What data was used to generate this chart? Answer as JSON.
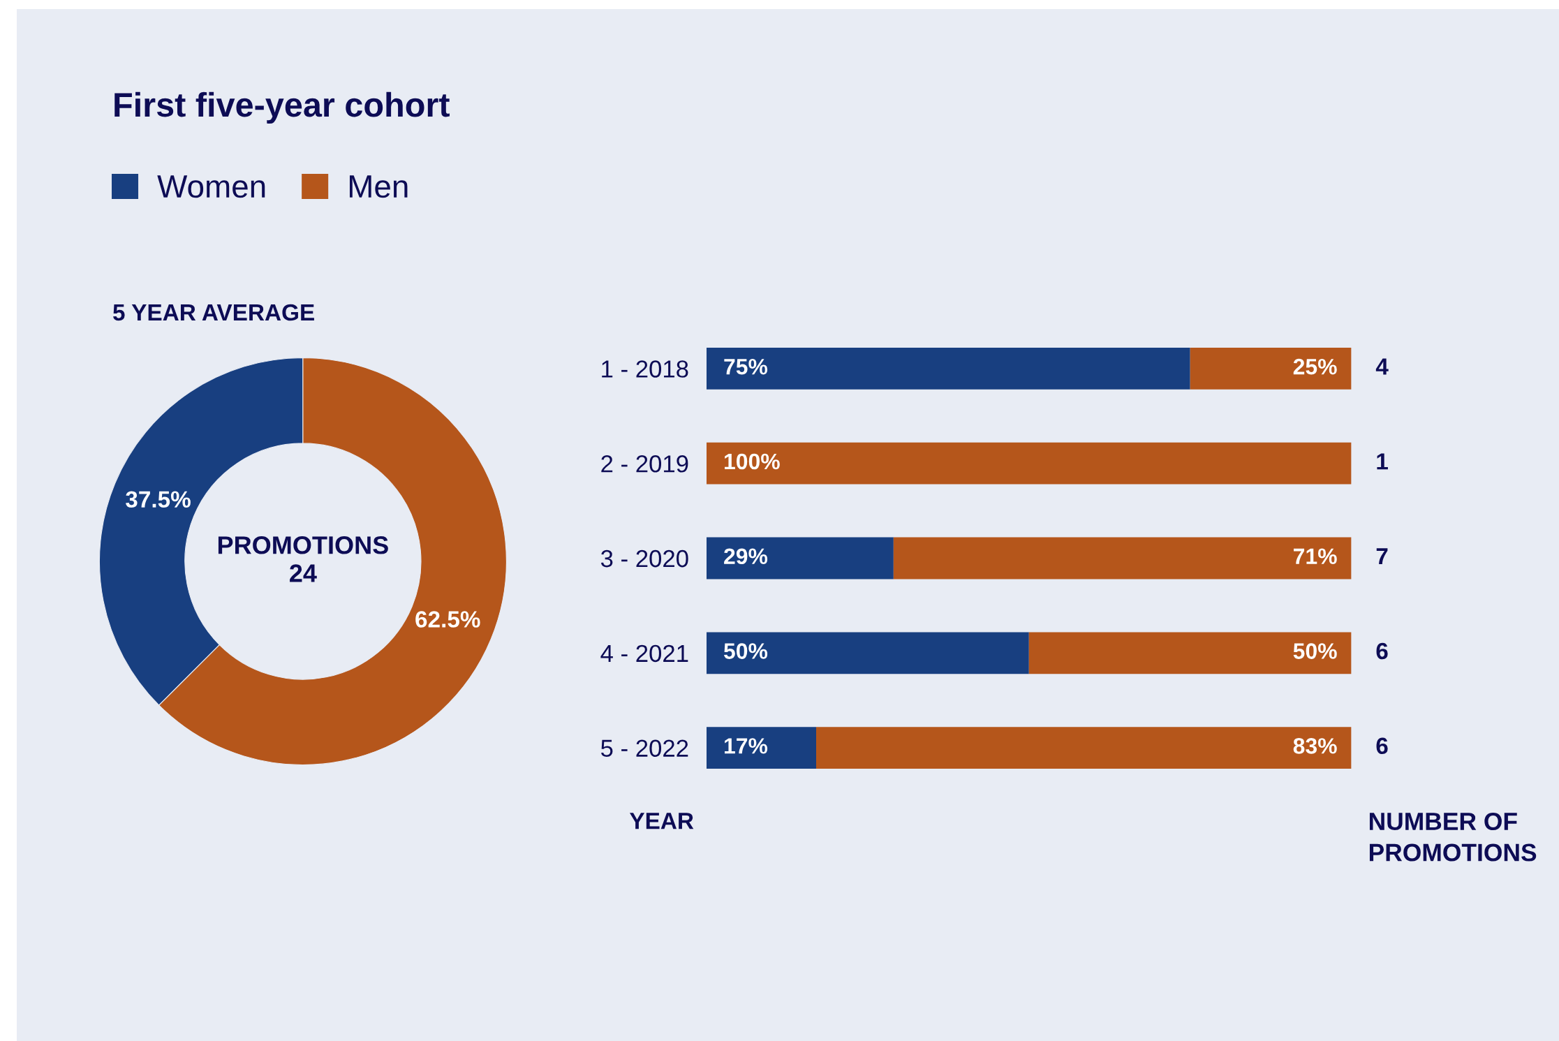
{
  "chart_data": [
    {
      "type": "donut",
      "title": "First five-year cohort",
      "subtitle": "5 YEAR AVERAGE",
      "categories": [
        "Women",
        "Men"
      ],
      "values": [
        37.5,
        62.5
      ],
      "colors": [
        "#183f80",
        "#b5561b"
      ],
      "value_labels": [
        "37.5%",
        "62.5%"
      ],
      "legend": "top left",
      "annotations": [
        "PROMOTIONS\n24"
      ]
    },
    {
      "type": "bar",
      "orientation": "horizontal",
      "stacked": true,
      "tick_labels": "y",
      "categories": [
        "1 - 2018",
        "2 - 2019",
        "3 - 2020",
        "4 - 2021",
        "5 - 2022"
      ],
      "series": [
        {
          "color": "#183f80",
          "values": [
            75,
            0,
            29,
            50,
            17
          ],
          "value_labels": [
            "75%",
            null,
            "29%",
            "50%",
            "17%"
          ]
        },
        {
          "color": "#b5561b",
          "values": [
            25,
            100,
            71,
            50,
            83
          ],
          "value_labels": [
            "25%",
            "100%",
            "71%",
            "50%",
            "83%"
          ]
        }
      ],
      "ylabel": "YEAR",
      "y2label": "NUMBER OF\nPROMOTIONS",
      "annotations": [
        "4",
        "1",
        "7",
        "6",
        "6"
      ]
    }
  ]
}
